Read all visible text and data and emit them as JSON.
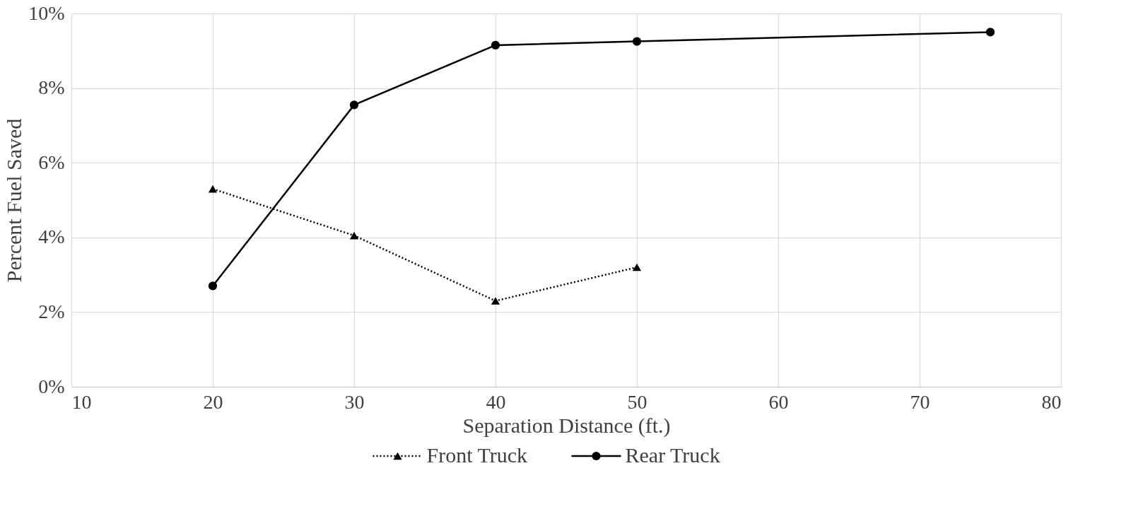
{
  "chart_data": {
    "type": "line",
    "xlabel": "Separation Distance (ft.)",
    "ylabel": "Percent Fuel Saved",
    "series": [
      {
        "name": "Front Truck",
        "color": "#000000",
        "marker": "triangle",
        "line_style": "dotted",
        "x": [
          20,
          30,
          40,
          50
        ],
        "values": [
          5.3,
          4.05,
          2.3,
          3.2
        ]
      },
      {
        "name": "Rear Truck",
        "color": "#000000",
        "marker": "circle",
        "line_style": "solid",
        "x": [
          20,
          30,
          40,
          50,
          75
        ],
        "values": [
          2.7,
          7.55,
          9.15,
          9.25,
          9.5
        ]
      }
    ],
    "xlim": [
      10,
      80
    ],
    "xticks": [
      10,
      20,
      30,
      40,
      50,
      60,
      70,
      80
    ],
    "ylim": [
      0,
      10
    ],
    "yticks": [
      {
        "value": 0,
        "label": "0%"
      },
      {
        "value": 2,
        "label": "2%"
      },
      {
        "value": 4,
        "label": "4%"
      },
      {
        "value": 6,
        "label": "6%"
      },
      {
        "value": 8,
        "label": "8%"
      },
      {
        "value": 10,
        "label": "10%"
      }
    ],
    "grid": true,
    "legend": "bottom"
  }
}
